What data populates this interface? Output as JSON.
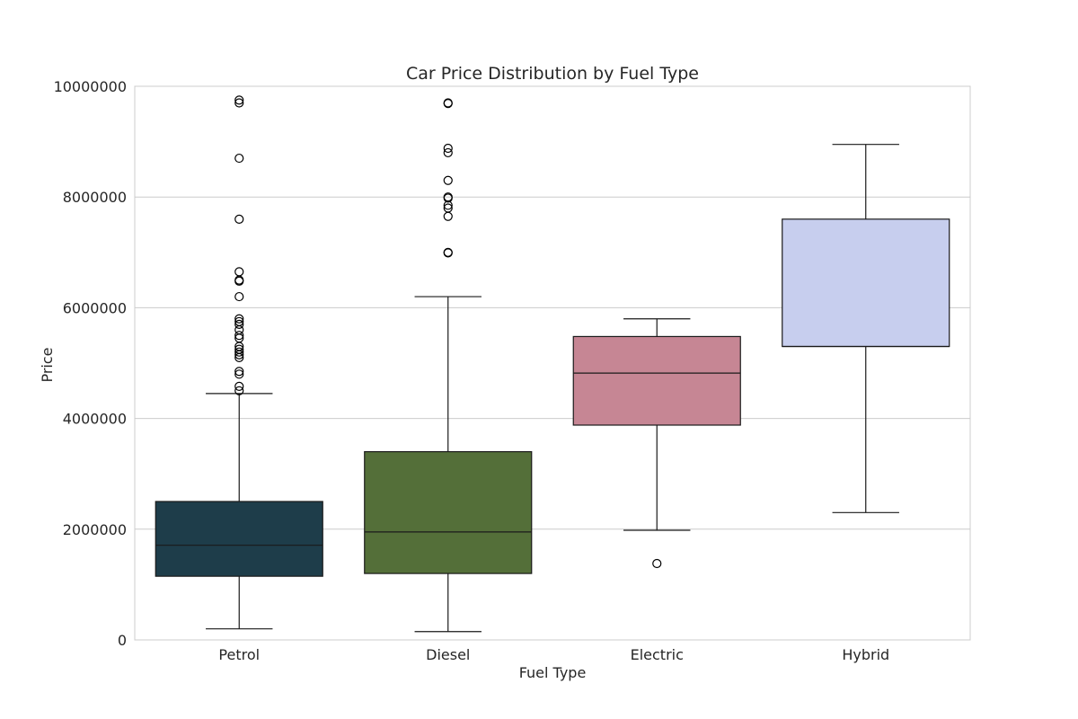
{
  "chart_data": {
    "type": "box",
    "title": "Car Price Distribution by Fuel Type",
    "xlabel": "Fuel Type",
    "ylabel": "Price",
    "ylim": [
      0,
      10000000
    ],
    "yticks": [
      {
        "value": 0,
        "label": "0"
      },
      {
        "value": 2000000,
        "label": "2000000"
      },
      {
        "value": 4000000,
        "label": "4000000"
      },
      {
        "value": 6000000,
        "label": "6000000"
      },
      {
        "value": 8000000,
        "label": "8000000"
      },
      {
        "value": 10000000,
        "label": "10000000"
      }
    ],
    "grid": true,
    "categories": [
      "Petrol",
      "Diesel",
      "Electric",
      "Hybrid"
    ],
    "boxes": [
      {
        "category": "Petrol",
        "color": "#1e3d4a",
        "whisker_low": 200000,
        "q1": 1150000,
        "median": 1710000,
        "q3": 2500000,
        "whisker_high": 4450000,
        "outliers": [
          9750000,
          9700000,
          8700000,
          7600000,
          6650000,
          6500000,
          6480000,
          6200000,
          5800000,
          5750000,
          5700000,
          5600000,
          5500000,
          5450000,
          5300000,
          5250000,
          5200000,
          5150000,
          5100000,
          4850000,
          4800000,
          4580000,
          4500000
        ]
      },
      {
        "category": "Diesel",
        "color": "#546f39",
        "whisker_low": 150000,
        "q1": 1200000,
        "median": 1950000,
        "q3": 3400000,
        "whisker_high": 6200000,
        "outliers": [
          9700000,
          9690000,
          8880000,
          8800000,
          8300000,
          8000000,
          7980000,
          7850000,
          7800000,
          7650000,
          7000000,
          6990000
        ]
      },
      {
        "category": "Electric",
        "color": "#c68694",
        "whisker_low": 1980000,
        "q1": 3880000,
        "median": 4820000,
        "q3": 5480000,
        "whisker_high": 5800000,
        "outliers": [
          1380000
        ]
      },
      {
        "category": "Hybrid",
        "color": "#c7ceee",
        "whisker_low": 2300000,
        "q1": 5300000,
        "median": 5300000,
        "q3": 7600000,
        "whisker_high": 8950000,
        "outliers": []
      }
    ]
  }
}
